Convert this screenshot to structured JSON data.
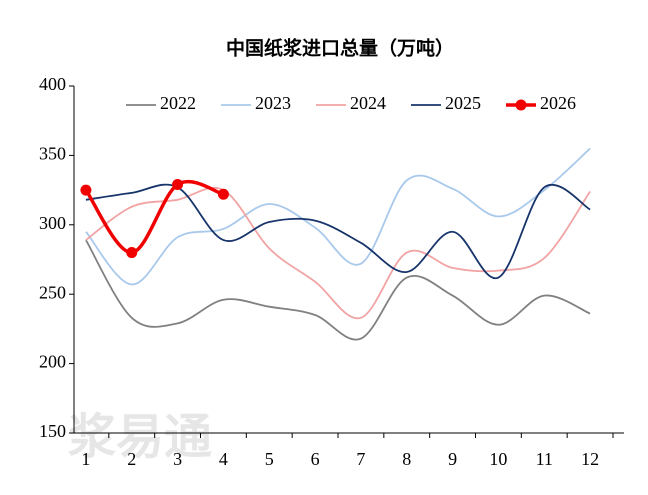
{
  "chart_data": {
    "type": "line",
    "title": "中国纸浆进口总量（万吨）",
    "watermark": "浆易通",
    "categories": [
      "1",
      "2",
      "3",
      "4",
      "5",
      "6",
      "7",
      "8",
      "9",
      "10",
      "11",
      "12"
    ],
    "ylim": [
      150,
      400
    ],
    "yticks": [
      150,
      200,
      250,
      300,
      350,
      400
    ],
    "smooth": true,
    "series": [
      {
        "name": "2022",
        "color": "#808080",
        "values": [
          289,
          233,
          229,
          246,
          241,
          235,
          218,
          262,
          249,
          228,
          249,
          236
        ]
      },
      {
        "name": "2023",
        "color": "#a9c9ec",
        "values": [
          295,
          257,
          291,
          297,
          315,
          298,
          272,
          332,
          326,
          306,
          325,
          355
        ]
      },
      {
        "name": "2024",
        "color": "#f2a3a3",
        "values": [
          289,
          313,
          318,
          325,
          283,
          259,
          233,
          280,
          269,
          267,
          276,
          324
        ]
      },
      {
        "name": "2025",
        "color": "#17346b",
        "values": [
          318,
          323,
          327,
          289,
          302,
          303,
          287,
          266,
          295,
          262,
          327,
          311
        ]
      },
      {
        "name": "2026",
        "color": "#f00000",
        "markers": true,
        "values": [
          325,
          280,
          329,
          322,
          null,
          null,
          null,
          null,
          null,
          null,
          null,
          null
        ]
      }
    ]
  }
}
